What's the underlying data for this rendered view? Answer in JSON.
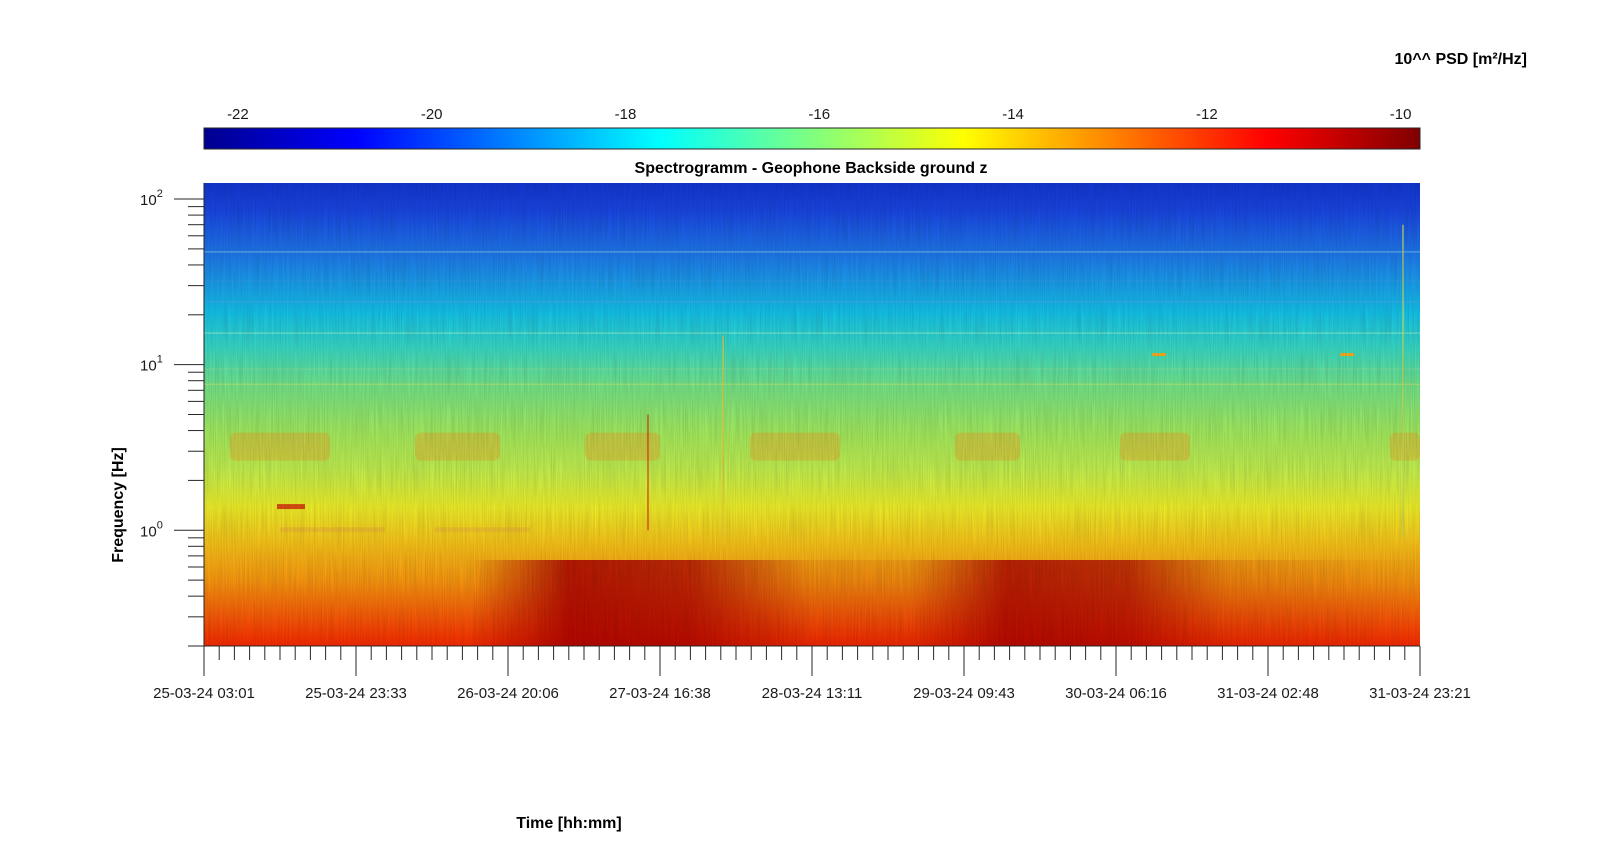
{
  "chart_data": {
    "type": "heatmap",
    "title": "Spectrogramm - Geophone Backside ground z",
    "xlabel": "Time [hh:mm]",
    "ylabel": "Frequency [Hz]",
    "colorbar": {
      "label": "10^^ PSD [m²/Hz]",
      "ticks": [
        -22,
        -20,
        -18,
        -16,
        -14,
        -12,
        -10
      ],
      "range": [
        -22.35,
        -9.8
      ],
      "colormap": "jet"
    },
    "y_axis": {
      "scale": "log",
      "ylim": [
        0.2,
        125
      ],
      "ticks": [
        1,
        10,
        100
      ],
      "tick_labels": [
        {
          "base": "10",
          "exp": "0"
        },
        {
          "base": "10",
          "exp": "1"
        },
        {
          "base": "10",
          "exp": "2"
        }
      ]
    },
    "x_axis": {
      "xlim": [
        "25-03-24 03:01",
        "31-03-24 23:21"
      ],
      "tick_labels": [
        "25-03-24 03:01",
        "25-03-24 23:33",
        "26-03-24 20:06",
        "27-03-24 16:38",
        "28-03-24 13:11",
        "29-03-24 09:43",
        "30-03-24 06:16",
        "31-03-24 02:48",
        "31-03-24 23:21"
      ],
      "minor_ticks_per_interval": 10
    },
    "profile": {
      "description_keys": [
        "frequency_hz",
        "log10_psd"
      ],
      "frequency_hz": [
        0.2,
        0.3,
        0.5,
        0.7,
        1.0,
        2.0,
        3.0,
        5.0,
        10,
        20,
        50,
        125
      ],
      "log10_psd": [
        -11.4,
        -12.2,
        -12.8,
        -13.5,
        -14.2,
        -14.9,
        -14.6,
        -16.0,
        -16.8,
        -17.6,
        -19.4,
        -20.4
      ]
    }
  }
}
